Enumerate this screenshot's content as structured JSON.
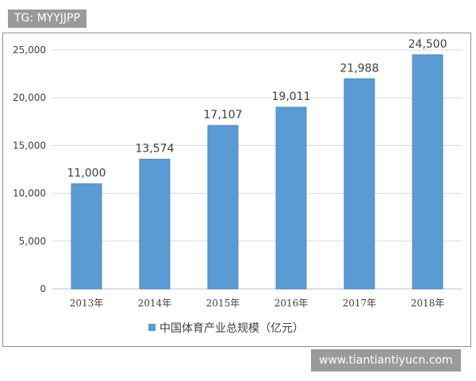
{
  "watermark_top": "TG: MYYJJPP",
  "watermark_bottom": "www.tiantiantiyucn.com",
  "chart_data": {
    "type": "bar",
    "categories": [
      "2013年",
      "2014年",
      "2015年",
      "2016年",
      "2017年",
      "2018年"
    ],
    "series": [
      {
        "name": "中国体育产业总规模（亿元）",
        "values": [
          11000,
          13574,
          17107,
          19011,
          21988,
          24500
        ],
        "data_labels": [
          "11,000",
          "13,574",
          "17,107",
          "19,011",
          "21,988",
          "24,500"
        ]
      }
    ],
    "title": "",
    "xlabel": "",
    "ylabel": "",
    "ylim": [
      0,
      25000
    ],
    "yticks": [
      "0",
      "5,000",
      "10,000",
      "15,000",
      "20,000",
      "25,000"
    ],
    "ytick_values": [
      0,
      5000,
      10000,
      15000,
      20000,
      25000
    ],
    "grid": true,
    "legend_position": "bottom",
    "colors": {
      "bar": "#5b9bd5",
      "bar_edge": "#4a8ac4",
      "grid": "#d9d9d9",
      "axis": "#bfbfbf"
    }
  }
}
